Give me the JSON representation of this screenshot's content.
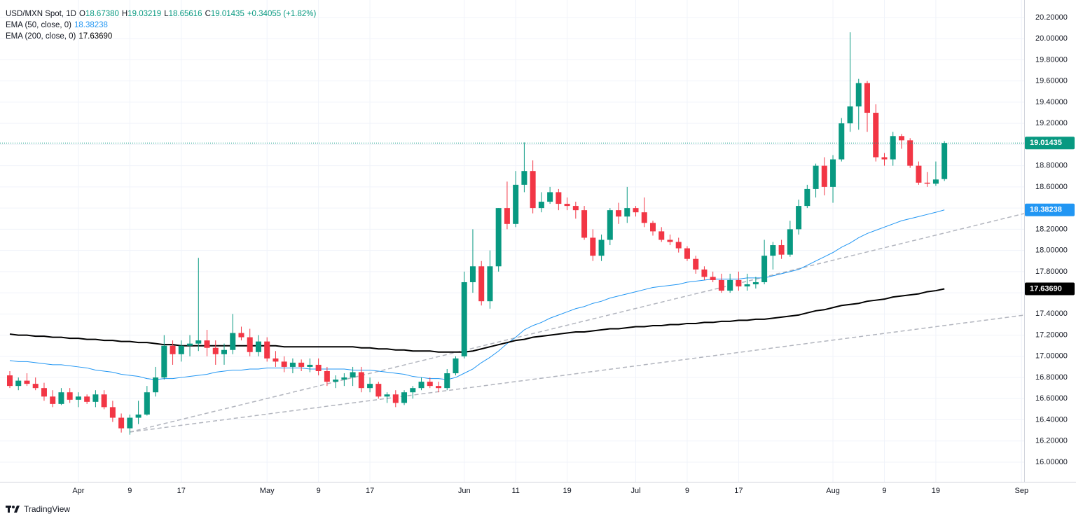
{
  "chart_data": {
    "type": "candlestick",
    "legend": {
      "symbol": "USD/MXN Spot, 1D",
      "fields": [
        {
          "label": "O",
          "value": "18.67380"
        },
        {
          "label": "H",
          "value": "19.03219"
        },
        {
          "label": "L",
          "value": "18.65616"
        },
        {
          "label": "C",
          "value": "19.01435"
        }
      ],
      "change": "+0.34055 (+1.82%)"
    },
    "categories": [
      null,
      null,
      null,
      null,
      null,
      null,
      null,
      null,
      "Apr",
      null,
      null,
      null,
      null,
      null,
      "9",
      null,
      null,
      null,
      null,
      null,
      "17",
      null,
      null,
      null,
      null,
      null,
      null,
      null,
      null,
      null,
      "May",
      null,
      null,
      null,
      null,
      null,
      "9",
      null,
      null,
      null,
      null,
      null,
      "17",
      null,
      null,
      null,
      null,
      null,
      null,
      null,
      null,
      null,
      null,
      "Jun",
      null,
      null,
      null,
      null,
      null,
      "11",
      null,
      null,
      null,
      null,
      null,
      "19",
      null,
      null,
      null,
      null,
      null,
      null,
      null,
      "Jul",
      null,
      null,
      null,
      null,
      null,
      "9",
      null,
      null,
      null,
      null,
      null,
      "17",
      null,
      null,
      null,
      null,
      null,
      null,
      null,
      null,
      null,
      null,
      "Aug",
      null,
      null,
      null,
      null,
      null,
      "9",
      null,
      null,
      null,
      null,
      null,
      "19",
      null,
      null,
      null,
      null,
      null,
      null,
      null,
      null,
      null,
      "Sep"
    ],
    "ohlc": [
      [
        16.82,
        16.86,
        16.7,
        16.72
      ],
      [
        16.72,
        16.8,
        16.68,
        16.77
      ],
      [
        16.77,
        16.84,
        16.72,
        16.74
      ],
      [
        16.74,
        16.8,
        16.68,
        16.7
      ],
      [
        16.7,
        16.75,
        16.58,
        16.62
      ],
      [
        16.62,
        16.68,
        16.52,
        16.55
      ],
      [
        16.55,
        16.7,
        16.54,
        16.66
      ],
      [
        16.66,
        16.7,
        16.56,
        16.59
      ],
      [
        16.59,
        16.66,
        16.52,
        16.62
      ],
      [
        16.62,
        16.64,
        16.55,
        16.57
      ],
      [
        16.57,
        16.68,
        16.52,
        16.64
      ],
      [
        16.64,
        16.68,
        16.5,
        16.52
      ],
      [
        16.52,
        16.58,
        16.38,
        16.42
      ],
      [
        16.42,
        16.46,
        16.28,
        16.32
      ],
      [
        16.32,
        16.45,
        16.26,
        16.42
      ],
      [
        16.42,
        16.58,
        16.36,
        16.45
      ],
      [
        16.45,
        16.72,
        16.44,
        16.66
      ],
      [
        16.66,
        16.9,
        16.62,
        16.8
      ],
      [
        16.8,
        17.2,
        16.78,
        17.1
      ],
      [
        17.1,
        17.15,
        16.92,
        17.02
      ],
      [
        17.02,
        17.15,
        16.95,
        17.1
      ],
      [
        17.1,
        17.2,
        17.0,
        17.12
      ],
      [
        17.12,
        17.93,
        17.05,
        17.15
      ],
      [
        17.15,
        17.25,
        17.0,
        17.08
      ],
      [
        17.08,
        17.15,
        16.92,
        17.02
      ],
      [
        17.02,
        17.12,
        16.92,
        17.06
      ],
      [
        17.06,
        17.4,
        17.02,
        17.22
      ],
      [
        17.22,
        17.28,
        17.15,
        17.18
      ],
      [
        17.18,
        17.26,
        17.0,
        17.04
      ],
      [
        17.04,
        17.2,
        17.0,
        17.14
      ],
      [
        17.14,
        17.18,
        16.95,
        16.98
      ],
      [
        16.98,
        17.05,
        16.9,
        16.95
      ],
      [
        16.95,
        17.0,
        16.85,
        16.9
      ],
      [
        16.9,
        16.98,
        16.84,
        16.94
      ],
      [
        16.94,
        16.97,
        16.86,
        16.9
      ],
      [
        16.9,
        16.98,
        16.85,
        16.92
      ],
      [
        16.92,
        16.98,
        16.82,
        16.86
      ],
      [
        16.86,
        16.9,
        16.72,
        16.76
      ],
      [
        16.76,
        16.82,
        16.7,
        16.78
      ],
      [
        16.78,
        16.84,
        16.72,
        16.8
      ],
      [
        16.8,
        16.9,
        16.72,
        16.85
      ],
      [
        16.85,
        16.9,
        16.66,
        16.7
      ],
      [
        16.7,
        16.8,
        16.66,
        16.74
      ],
      [
        16.74,
        16.76,
        16.6,
        16.62
      ],
      [
        16.62,
        16.66,
        16.56,
        16.64
      ],
      [
        16.64,
        16.68,
        16.52,
        16.56
      ],
      [
        16.56,
        16.68,
        16.54,
        16.66
      ],
      [
        16.66,
        16.72,
        16.6,
        16.7
      ],
      [
        16.7,
        16.8,
        16.68,
        16.76
      ],
      [
        16.76,
        16.8,
        16.7,
        16.72
      ],
      [
        16.72,
        16.76,
        16.66,
        16.7
      ],
      [
        16.7,
        16.88,
        16.68,
        16.84
      ],
      [
        16.84,
        17.0,
        16.82,
        16.98
      ],
      [
        17.0,
        17.8,
        16.98,
        17.7
      ],
      [
        17.7,
        18.2,
        17.6,
        17.85
      ],
      [
        17.85,
        17.9,
        17.48,
        17.52
      ],
      [
        17.52,
        18.0,
        17.45,
        17.85
      ],
      [
        17.85,
        18.4,
        17.8,
        18.4
      ],
      [
        18.4,
        18.65,
        18.2,
        18.25
      ],
      [
        18.25,
        18.75,
        18.22,
        18.62
      ],
      [
        18.62,
        19.02,
        18.55,
        18.75
      ],
      [
        18.75,
        18.85,
        18.35,
        18.4
      ],
      [
        18.4,
        18.55,
        18.36,
        18.46
      ],
      [
        18.46,
        18.6,
        18.44,
        18.55
      ],
      [
        18.55,
        18.58,
        18.38,
        18.44
      ],
      [
        18.44,
        18.5,
        18.38,
        18.42
      ],
      [
        18.42,
        18.46,
        18.3,
        18.38
      ],
      [
        18.38,
        18.42,
        18.1,
        18.12
      ],
      [
        18.12,
        18.2,
        17.9,
        17.95
      ],
      [
        17.95,
        18.15,
        17.9,
        18.1
      ],
      [
        18.1,
        18.4,
        18.05,
        18.38
      ],
      [
        18.38,
        18.45,
        18.25,
        18.32
      ],
      [
        18.32,
        18.6,
        18.26,
        18.4
      ],
      [
        18.4,
        18.42,
        18.32,
        18.36
      ],
      [
        18.36,
        18.5,
        18.22,
        18.26
      ],
      [
        18.26,
        18.28,
        18.14,
        18.18
      ],
      [
        18.18,
        18.22,
        18.08,
        18.1
      ],
      [
        18.1,
        18.15,
        18.05,
        18.08
      ],
      [
        18.08,
        18.12,
        17.98,
        18.02
      ],
      [
        18.02,
        18.04,
        17.9,
        17.92
      ],
      [
        17.92,
        17.95,
        17.78,
        17.82
      ],
      [
        17.82,
        17.85,
        17.72,
        17.75
      ],
      [
        17.75,
        17.8,
        17.7,
        17.72
      ],
      [
        17.72,
        17.78,
        17.6,
        17.62
      ],
      [
        17.62,
        17.78,
        17.6,
        17.72
      ],
      [
        17.72,
        17.8,
        17.62,
        17.66
      ],
      [
        17.66,
        17.78,
        17.62,
        17.68
      ],
      [
        17.68,
        17.75,
        17.64,
        17.7
      ],
      [
        17.7,
        18.1,
        17.68,
        17.95
      ],
      [
        17.95,
        18.08,
        17.82,
        18.05
      ],
      [
        18.05,
        18.1,
        17.92,
        17.96
      ],
      [
        17.96,
        18.28,
        17.94,
        18.2
      ],
      [
        18.2,
        18.48,
        18.15,
        18.42
      ],
      [
        18.42,
        18.62,
        18.4,
        18.58
      ],
      [
        18.58,
        18.82,
        18.5,
        18.8
      ],
      [
        18.8,
        18.88,
        18.52,
        18.6
      ],
      [
        18.6,
        18.9,
        18.45,
        18.86
      ],
      [
        18.86,
        19.25,
        18.84,
        19.2
      ],
      [
        19.2,
        20.06,
        19.12,
        19.36
      ],
      [
        19.36,
        19.62,
        19.14,
        19.58
      ],
      [
        19.58,
        19.6,
        19.12,
        19.3
      ],
      [
        19.3,
        19.38,
        18.84,
        18.88
      ],
      [
        18.88,
        18.92,
        18.8,
        18.86
      ],
      [
        18.86,
        19.12,
        18.8,
        19.08
      ],
      [
        19.08,
        19.1,
        18.96,
        19.04
      ],
      [
        19.04,
        19.06,
        18.78,
        18.8
      ],
      [
        18.8,
        18.84,
        18.62,
        18.64
      ],
      [
        18.64,
        18.74,
        18.6,
        18.63
      ],
      [
        18.63,
        18.84,
        18.61,
        18.67
      ],
      [
        18.6738,
        19.03219,
        18.65616,
        19.01435
      ],
      null,
      null,
      null,
      null,
      null,
      null,
      null,
      null,
      null
    ],
    "up_color": "#089981",
    "down_color": "#f23645",
    "series": [
      {
        "name": "EMA (50, close, 0)",
        "color": "#2196f3",
        "last_label": "18.38238",
        "values": [
          16.96,
          16.95,
          16.95,
          16.94,
          16.93,
          16.92,
          16.92,
          16.91,
          16.9,
          16.89,
          16.87,
          16.86,
          16.85,
          16.83,
          16.82,
          16.81,
          16.79,
          16.78,
          16.79,
          16.79,
          16.8,
          16.81,
          16.82,
          16.83,
          16.85,
          16.86,
          16.87,
          16.87,
          16.88,
          16.88,
          16.89,
          16.89,
          16.89,
          16.89,
          16.89,
          16.88,
          16.88,
          16.88,
          16.88,
          16.88,
          16.87,
          16.87,
          16.87,
          16.86,
          16.85,
          16.84,
          16.83,
          16.81,
          16.8,
          16.79,
          16.79,
          16.78,
          16.8,
          16.84,
          16.88,
          16.94,
          16.99,
          17.05,
          17.12,
          17.18,
          17.25,
          17.29,
          17.32,
          17.36,
          17.39,
          17.42,
          17.45,
          17.47,
          17.5,
          17.52,
          17.55,
          17.57,
          17.59,
          17.61,
          17.63,
          17.65,
          17.66,
          17.67,
          17.68,
          17.7,
          17.71,
          17.72,
          17.73,
          17.73,
          17.73,
          17.73,
          17.74,
          17.74,
          17.74,
          17.76,
          17.78,
          17.8,
          17.82,
          17.86,
          17.9,
          17.94,
          17.98,
          18.03,
          18.07,
          18.12,
          18.16,
          18.19,
          18.22,
          18.25,
          18.28,
          18.3,
          18.32,
          18.34,
          18.36,
          18.38238,
          null,
          null,
          null,
          null,
          null,
          null,
          null,
          null,
          null
        ]
      },
      {
        "name": "EMA (200, close, 0)",
        "color": "#000000",
        "last_label": "17.63690",
        "values": [
          17.21,
          17.2,
          17.2,
          17.19,
          17.19,
          17.18,
          17.18,
          17.17,
          17.17,
          17.16,
          17.16,
          17.15,
          17.15,
          17.14,
          17.14,
          17.13,
          17.13,
          17.12,
          17.11,
          17.11,
          17.1,
          17.1,
          17.1,
          17.1,
          17.1,
          17.1,
          17.1,
          17.1,
          17.1,
          17.1,
          17.1,
          17.1,
          17.09,
          17.09,
          17.09,
          17.09,
          17.09,
          17.09,
          17.09,
          17.09,
          17.09,
          17.08,
          17.08,
          17.07,
          17.07,
          17.06,
          17.06,
          17.05,
          17.05,
          17.05,
          17.04,
          17.04,
          17.04,
          17.04,
          17.05,
          17.07,
          17.09,
          17.11,
          17.13,
          17.15,
          17.16,
          17.18,
          17.19,
          17.2,
          17.21,
          17.22,
          17.23,
          17.23,
          17.24,
          17.25,
          17.26,
          17.26,
          17.27,
          17.28,
          17.28,
          17.29,
          17.29,
          17.3,
          17.3,
          17.31,
          17.31,
          17.32,
          17.32,
          17.33,
          17.33,
          17.34,
          17.34,
          17.35,
          17.35,
          17.36,
          17.37,
          17.38,
          17.39,
          17.41,
          17.43,
          17.44,
          17.46,
          17.48,
          17.49,
          17.5,
          17.52,
          17.53,
          17.54,
          17.56,
          17.57,
          17.58,
          17.59,
          17.61,
          17.62,
          17.6369,
          null,
          null,
          null,
          null,
          null,
          null,
          null,
          null,
          null
        ]
      }
    ],
    "ylim": [
      15.815,
      20.365
    ],
    "yticks": [
      {
        "value": 16.0,
        "label": "16.00000"
      },
      {
        "value": 16.2,
        "label": "16.20000"
      },
      {
        "value": 16.4,
        "label": "16.40000"
      },
      {
        "value": 16.6,
        "label": "16.60000"
      },
      {
        "value": 16.8,
        "label": "16.80000"
      },
      {
        "value": 17.0,
        "label": "17.00000"
      },
      {
        "value": 17.2,
        "label": "17.20000"
      },
      {
        "value": 17.4,
        "label": "17.40000"
      },
      {
        "value": 17.6,
        "label": "17.60000"
      },
      {
        "value": 17.8,
        "label": "17.80000"
      },
      {
        "value": 18.0,
        "label": "18.00000"
      },
      {
        "value": 18.2,
        "label": "18.20000"
      },
      {
        "value": 18.4,
        "label": "18.40000"
      },
      {
        "value": 18.6,
        "label": "18.60000"
      },
      {
        "value": 18.8,
        "label": "18.80000"
      },
      {
        "value": 19.0,
        "label": "19.00000"
      },
      {
        "value": 19.2,
        "label": "19.20000"
      },
      {
        "value": 19.4,
        "label": "19.40000"
      },
      {
        "value": 19.6,
        "label": "19.60000"
      },
      {
        "value": 19.8,
        "label": "19.80000"
      },
      {
        "value": 20.0,
        "label": "20.00000"
      },
      {
        "value": 20.2,
        "label": "20.20000"
      }
    ],
    "grid": true
  },
  "footer": {
    "brand": "TradingView"
  }
}
